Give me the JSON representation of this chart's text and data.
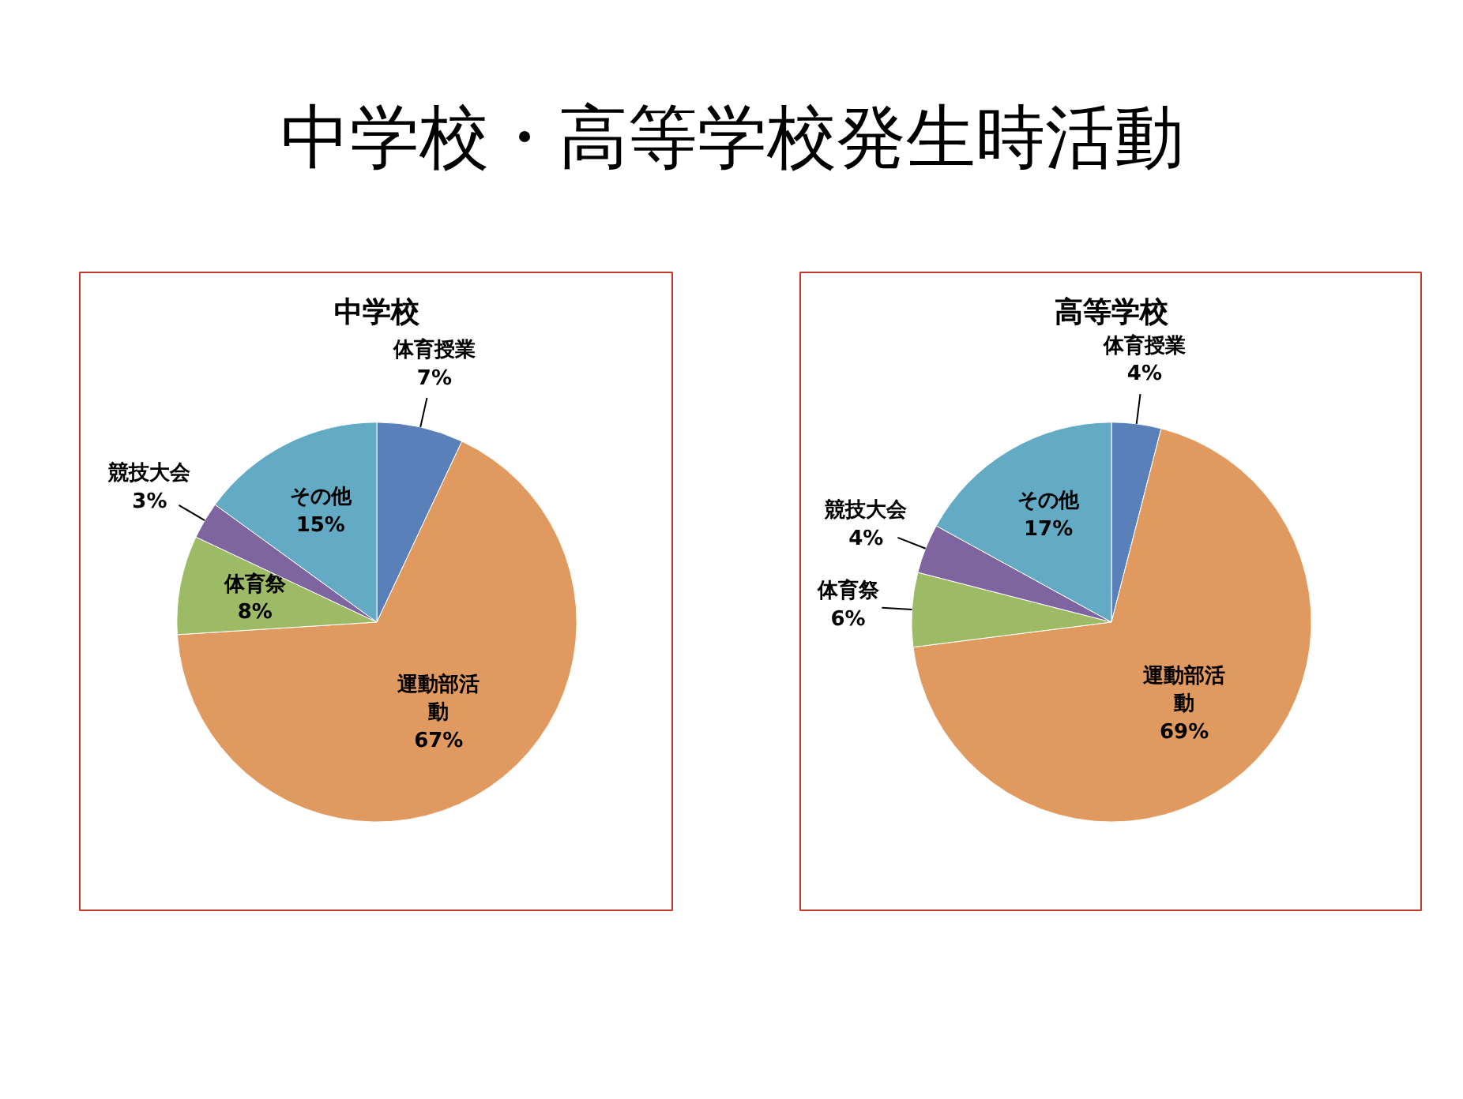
{
  "chart_data": [
    {
      "type": "other",
      "title": "中学校・高等学校発生時活動"
    },
    {
      "type": "pie",
      "title": "中学校",
      "categories": [
        "体育授業",
        "運動部活動",
        "体育祭",
        "競技大会",
        "その他"
      ],
      "values": [
        7,
        67,
        8,
        3,
        15
      ],
      "value_labels": [
        "7%",
        "67%",
        "8%",
        "3%",
        "15%"
      ],
      "colors": [
        "#5a80b9",
        "#e09a60",
        "#9dba65",
        "#7e65a0",
        "#63aac5"
      ]
    },
    {
      "type": "pie",
      "title": "高等学校",
      "categories": [
        "体育授業",
        "運動部活動",
        "体育祭",
        "競技大会",
        "その他"
      ],
      "values": [
        4,
        69,
        6,
        4,
        17
      ],
      "value_labels": [
        "4%",
        "69%",
        "6%",
        "4%",
        "17%"
      ],
      "colors": [
        "#5a80b9",
        "#e09a60",
        "#9dba65",
        "#7e65a0",
        "#63aac5"
      ]
    }
  ]
}
